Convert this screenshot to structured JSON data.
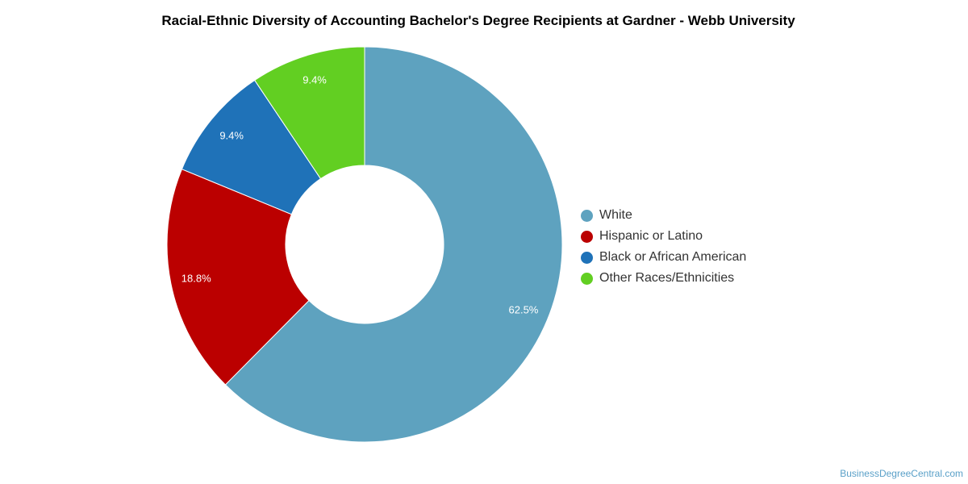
{
  "chart_data": {
    "type": "pie",
    "variant": "donut",
    "title": "Racial-Ethnic Diversity of Accounting Bachelor's Degree Recipients at Gardner - Webb University",
    "categories": [
      "White",
      "Hispanic or Latino",
      "Black or African American",
      "Other Races/Ethnicities"
    ],
    "values": [
      62.5,
      18.8,
      9.4,
      9.4
    ],
    "value_labels": [
      "62.5%",
      "18.8%",
      "9.4%",
      "9.4%"
    ],
    "colors": [
      "#5ea2bf",
      "#bb0000",
      "#1f72b8",
      "#62cf22"
    ],
    "legend_position": "right"
  },
  "credit": "BusinessDegreeCentral.com"
}
